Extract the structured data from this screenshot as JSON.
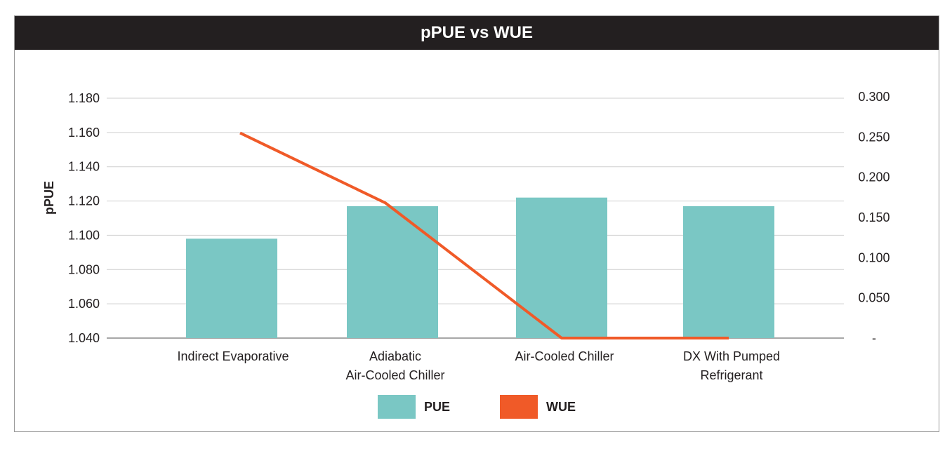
{
  "chart_data": {
    "type": "bar",
    "title": "pPUE vs WUE",
    "ylabel": "pPUE",
    "ylabel_right": "",
    "categories": [
      [
        "Indirect Evaporative"
      ],
      [
        "Adiabatic",
        "Air-Cooled Chiller"
      ],
      [
        "Air-Cooled Chiller"
      ],
      [
        "DX With Pumped",
        "Refrigerant"
      ]
    ],
    "y_ticks": [
      "1.180",
      "1.160",
      "1.140",
      "1.120",
      "1.100",
      "1.080",
      "1.060",
      "1.040"
    ],
    "ylim": [
      1.04,
      1.18
    ],
    "y2_ticks": [
      "0.300",
      "0.250",
      "0.200",
      "0.150",
      "0.100",
      "0.050",
      "-"
    ],
    "y2_tick_values": [
      0.3,
      0.25,
      0.2,
      0.15,
      0.1,
      0.05,
      0
    ],
    "y2lim": [
      0,
      0.3
    ],
    "grid": true,
    "legend_position": "bottom-center",
    "series": [
      {
        "name": "PUE",
        "type": "bar",
        "axis": "left",
        "color": "#7ac7c4",
        "values": [
          1.098,
          1.117,
          1.122,
          1.117
        ]
      },
      {
        "name": "WUE",
        "type": "line",
        "axis": "right",
        "color": "#f05a28",
        "values": [
          0.255,
          0.168,
          0.0,
          0.0
        ]
      }
    ]
  }
}
